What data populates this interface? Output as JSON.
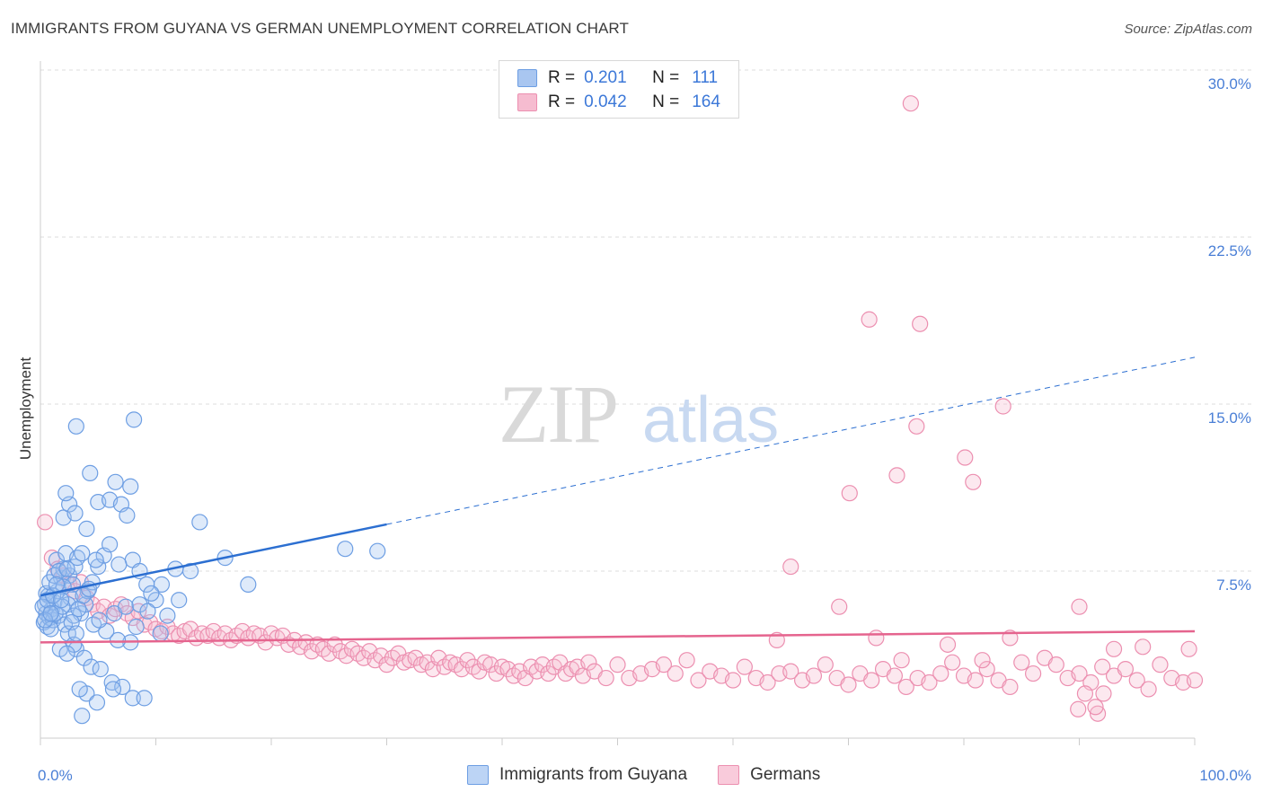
{
  "header": {
    "title": "IMMIGRANTS FROM GUYANA VS GERMAN UNEMPLOYMENT CORRELATION CHART",
    "source": "Source: ZipAtlas.com"
  },
  "legend": {
    "rows": [
      {
        "r_label": "R =",
        "r_value": "0.201",
        "n_label": "N =",
        "n_value": "111",
        "color": "#a9c6f0",
        "border": "#6d9ee3"
      },
      {
        "r_label": "R =",
        "r_value": "0.042",
        "n_label": "N =",
        "n_value": "164",
        "color": "#f6bcd0",
        "border": "#ec8fb0"
      }
    ]
  },
  "bottom_legend": [
    {
      "label": "Immigrants from Guyana",
      "color": "#bcd4f5",
      "border": "#6d9ee3"
    },
    {
      "label": "Germans",
      "color": "#f9cbdb",
      "border": "#ec8fb0"
    }
  ],
  "watermark": {
    "zip": "ZIP",
    "atlas": "atlas"
  },
  "chart_data": {
    "type": "scatter",
    "title": "IMMIGRANTS FROM GUYANA VS GERMAN UNEMPLOYMENT CORRELATION CHART",
    "xlabel": "",
    "ylabel": "Unemployment",
    "xlim": [
      0,
      100
    ],
    "ylim": [
      0,
      30
    ],
    "x_ticks": [
      {
        "value": 0,
        "label": "0.0%"
      },
      {
        "value": 100,
        "label": "100.0%"
      }
    ],
    "y_ticks": [
      {
        "value": 7.5,
        "label": "7.5%"
      },
      {
        "value": 15,
        "label": "15.0%"
      },
      {
        "value": 22.5,
        "label": "22.5%"
      },
      {
        "value": 30,
        "label": "30.0%"
      }
    ],
    "series": [
      {
        "name": "Immigrants from Guyana",
        "color": "#6d9ee3",
        "fill": "rgba(160,194,240,0.35)",
        "trend": {
          "x0": 0,
          "y0": 6.4,
          "x1": 30,
          "y1": 9.6,
          "dash_x1": 100,
          "dash_y1": 17.1,
          "color": "#2c6fd1"
        },
        "points": [
          [
            0.3,
            5.2
          ],
          [
            0.5,
            5.6
          ],
          [
            0.4,
            6.0
          ],
          [
            0.6,
            5.0
          ],
          [
            0.8,
            5.4
          ],
          [
            1.0,
            5.8
          ],
          [
            1.2,
            6.1
          ],
          [
            0.7,
            6.4
          ],
          [
            1.1,
            5.3
          ],
          [
            0.9,
            4.9
          ],
          [
            1.5,
            6.6
          ],
          [
            1.8,
            7.2
          ],
          [
            2.0,
            7.6
          ],
          [
            1.4,
            8.0
          ],
          [
            2.2,
            8.3
          ],
          [
            2.5,
            7.3
          ],
          [
            3.0,
            7.7
          ],
          [
            3.2,
            8.1
          ],
          [
            2.8,
            6.9
          ],
          [
            2.6,
            6.3
          ],
          [
            1.6,
            5.5
          ],
          [
            2.1,
            5.1
          ],
          [
            2.4,
            4.7
          ],
          [
            3.5,
            5.6
          ],
          [
            3.9,
            6.0
          ],
          [
            4.1,
            6.6
          ],
          [
            4.5,
            7.0
          ],
          [
            5.0,
            7.7
          ],
          [
            5.5,
            8.2
          ],
          [
            6.0,
            8.7
          ],
          [
            2.0,
            9.9
          ],
          [
            2.5,
            10.5
          ],
          [
            3.0,
            10.1
          ],
          [
            4.0,
            9.4
          ],
          [
            5.0,
            10.6
          ],
          [
            6.0,
            10.7
          ],
          [
            6.5,
            11.5
          ],
          [
            4.3,
            11.9
          ],
          [
            2.2,
            11.0
          ],
          [
            7.0,
            10.5
          ],
          [
            7.5,
            10.0
          ],
          [
            8.0,
            8.0
          ],
          [
            8.6,
            7.5
          ],
          [
            9.2,
            6.9
          ],
          [
            10.0,
            6.2
          ],
          [
            11.0,
            5.5
          ],
          [
            12.0,
            6.2
          ],
          [
            13.0,
            7.5
          ],
          [
            10.5,
            6.9
          ],
          [
            9.6,
            6.5
          ],
          [
            3.1,
            4.0
          ],
          [
            3.8,
            3.6
          ],
          [
            4.4,
            3.2
          ],
          [
            2.9,
            4.2
          ],
          [
            1.7,
            4.0
          ],
          [
            2.3,
            3.8
          ],
          [
            5.2,
            3.1
          ],
          [
            6.2,
            2.5
          ],
          [
            7.1,
            2.3
          ],
          [
            8.0,
            1.8
          ],
          [
            4.0,
            2.0
          ],
          [
            3.4,
            2.2
          ],
          [
            4.9,
            1.6
          ],
          [
            3.6,
            1.0
          ],
          [
            6.3,
            2.2
          ],
          [
            9.0,
            1.8
          ],
          [
            7.8,
            4.3
          ],
          [
            6.7,
            4.4
          ],
          [
            5.7,
            4.8
          ],
          [
            8.3,
            5.0
          ],
          [
            0.5,
            6.5
          ],
          [
            0.8,
            7.0
          ],
          [
            1.2,
            7.3
          ],
          [
            1.6,
            7.5
          ],
          [
            2.0,
            6.8
          ],
          [
            2.4,
            6.0
          ],
          [
            2.9,
            5.5
          ],
          [
            3.3,
            5.8
          ],
          [
            3.7,
            6.4
          ],
          [
            4.2,
            6.7
          ],
          [
            1.3,
            5.6
          ],
          [
            1.9,
            5.9
          ],
          [
            2.7,
            5.2
          ],
          [
            3.1,
            4.7
          ],
          [
            4.6,
            5.1
          ],
          [
            5.1,
            5.3
          ],
          [
            6.4,
            5.6
          ],
          [
            7.4,
            5.9
          ],
          [
            8.6,
            6.0
          ],
          [
            9.3,
            5.7
          ],
          [
            3.1,
            14.0
          ],
          [
            8.1,
            14.3
          ],
          [
            7.8,
            11.3
          ],
          [
            13.8,
            9.7
          ],
          [
            16.0,
            8.1
          ],
          [
            18.0,
            6.9
          ],
          [
            26.4,
            8.5
          ],
          [
            29.2,
            8.4
          ],
          [
            11.7,
            7.6
          ],
          [
            10.4,
            4.7
          ],
          [
            0.2,
            5.9
          ],
          [
            0.4,
            5.3
          ],
          [
            0.6,
            6.2
          ],
          [
            0.9,
            5.6
          ],
          [
            1.1,
            6.4
          ],
          [
            1.4,
            6.9
          ],
          [
            1.8,
            6.2
          ],
          [
            2.3,
            7.6
          ],
          [
            3.6,
            8.3
          ],
          [
            4.8,
            8.0
          ],
          [
            6.8,
            7.8
          ]
        ]
      },
      {
        "name": "Germans",
        "color": "#ec8fb0",
        "fill": "rgba(246,188,208,0.35)",
        "trend": {
          "x0": 0,
          "y0": 4.3,
          "x1": 100,
          "y1": 4.8,
          "color": "#e5648e"
        },
        "points": [
          [
            0.4,
            9.7
          ],
          [
            1.0,
            8.1
          ],
          [
            1.5,
            7.6
          ],
          [
            2.0,
            7.3
          ],
          [
            2.5,
            6.9
          ],
          [
            3.0,
            6.6
          ],
          [
            3.5,
            7.0
          ],
          [
            4.0,
            6.3
          ],
          [
            4.5,
            6.0
          ],
          [
            5.0,
            5.7
          ],
          [
            5.5,
            5.9
          ],
          [
            6.0,
            5.5
          ],
          [
            6.5,
            5.8
          ],
          [
            7.0,
            6.0
          ],
          [
            7.5,
            5.6
          ],
          [
            8.0,
            5.4
          ],
          [
            8.5,
            5.7
          ],
          [
            9.0,
            5.1
          ],
          [
            9.5,
            5.2
          ],
          [
            10.0,
            4.9
          ],
          [
            10.5,
            4.8
          ],
          [
            11.0,
            5.0
          ],
          [
            11.5,
            4.7
          ],
          [
            12.0,
            4.6
          ],
          [
            12.5,
            4.8
          ],
          [
            13.0,
            4.9
          ],
          [
            13.5,
            4.5
          ],
          [
            14.0,
            4.7
          ],
          [
            14.5,
            4.6
          ],
          [
            15.0,
            4.8
          ],
          [
            15.5,
            4.5
          ],
          [
            16.0,
            4.7
          ],
          [
            16.5,
            4.4
          ],
          [
            17.0,
            4.6
          ],
          [
            17.5,
            4.8
          ],
          [
            18.0,
            4.5
          ],
          [
            18.5,
            4.7
          ],
          [
            19.0,
            4.6
          ],
          [
            19.5,
            4.3
          ],
          [
            20.0,
            4.7
          ],
          [
            20.5,
            4.5
          ],
          [
            21.0,
            4.6
          ],
          [
            21.5,
            4.2
          ],
          [
            22.0,
            4.4
          ],
          [
            22.5,
            4.1
          ],
          [
            23.0,
            4.3
          ],
          [
            23.5,
            3.9
          ],
          [
            24.0,
            4.2
          ],
          [
            24.5,
            4.0
          ],
          [
            25.0,
            3.8
          ],
          [
            25.5,
            4.2
          ],
          [
            26.0,
            3.9
          ],
          [
            26.5,
            3.7
          ],
          [
            27.0,
            4.0
          ],
          [
            27.5,
            3.8
          ],
          [
            28.0,
            3.6
          ],
          [
            28.5,
            3.9
          ],
          [
            29.0,
            3.5
          ],
          [
            29.5,
            3.7
          ],
          [
            30.0,
            3.3
          ],
          [
            30.5,
            3.6
          ],
          [
            31.0,
            3.8
          ],
          [
            31.5,
            3.4
          ],
          [
            32.0,
            3.5
          ],
          [
            32.5,
            3.6
          ],
          [
            33.0,
            3.3
          ],
          [
            33.5,
            3.4
          ],
          [
            34.0,
            3.1
          ],
          [
            34.5,
            3.6
          ],
          [
            35.0,
            3.2
          ],
          [
            35.5,
            3.4
          ],
          [
            36.0,
            3.3
          ],
          [
            36.5,
            3.1
          ],
          [
            37.0,
            3.5
          ],
          [
            37.5,
            3.2
          ],
          [
            38.0,
            3.0
          ],
          [
            38.5,
            3.4
          ],
          [
            39.0,
            3.3
          ],
          [
            39.5,
            2.9
          ],
          [
            40.0,
            3.2
          ],
          [
            40.5,
            3.1
          ],
          [
            41.0,
            2.8
          ],
          [
            41.5,
            3.0
          ],
          [
            42.0,
            2.7
          ],
          [
            42.5,
            3.2
          ],
          [
            43.0,
            3.0
          ],
          [
            43.5,
            3.3
          ],
          [
            44.0,
            2.9
          ],
          [
            44.5,
            3.2
          ],
          [
            45.0,
            3.4
          ],
          [
            45.5,
            2.9
          ],
          [
            46.0,
            3.1
          ],
          [
            46.5,
            3.2
          ],
          [
            47.0,
            2.8
          ],
          [
            47.5,
            3.4
          ],
          [
            48.0,
            3.0
          ],
          [
            49.0,
            2.7
          ],
          [
            50.0,
            3.3
          ],
          [
            51.0,
            2.7
          ],
          [
            52.0,
            2.9
          ],
          [
            53.0,
            3.1
          ],
          [
            54.0,
            3.3
          ],
          [
            55.0,
            2.9
          ],
          [
            56.0,
            3.5
          ],
          [
            57.0,
            2.6
          ],
          [
            58.0,
            3.0
          ],
          [
            59.0,
            2.8
          ],
          [
            60.0,
            2.6
          ],
          [
            61.0,
            3.2
          ],
          [
            62.0,
            2.7
          ],
          [
            63.0,
            2.5
          ],
          [
            64.0,
            2.9
          ],
          [
            65.0,
            3.0
          ],
          [
            66.0,
            2.6
          ],
          [
            67.0,
            2.8
          ],
          [
            68.0,
            3.3
          ],
          [
            69.0,
            2.7
          ],
          [
            70.0,
            2.4
          ],
          [
            71.0,
            2.9
          ],
          [
            72.0,
            2.6
          ],
          [
            73.0,
            3.1
          ],
          [
            74.0,
            2.8
          ],
          [
            75.0,
            2.3
          ],
          [
            76.0,
            2.7
          ],
          [
            77.0,
            2.5
          ],
          [
            78.0,
            2.9
          ],
          [
            79.0,
            3.4
          ],
          [
            80.0,
            2.8
          ],
          [
            81.0,
            2.6
          ],
          [
            82.0,
            3.1
          ],
          [
            83.0,
            2.6
          ],
          [
            84.0,
            2.3
          ],
          [
            85.0,
            3.4
          ],
          [
            86.0,
            2.9
          ],
          [
            87.0,
            3.6
          ],
          [
            88.0,
            3.3
          ],
          [
            89.0,
            2.7
          ],
          [
            90.0,
            2.9
          ],
          [
            91.0,
            2.5
          ],
          [
            92.0,
            3.2
          ],
          [
            93.0,
            2.8
          ],
          [
            94.0,
            3.1
          ],
          [
            95.0,
            2.6
          ],
          [
            96.0,
            2.2
          ],
          [
            97.0,
            3.3
          ],
          [
            98.0,
            2.7
          ],
          [
            99.0,
            2.5
          ],
          [
            100.0,
            2.6
          ],
          [
            99.5,
            4.0
          ],
          [
            63.8,
            4.4
          ],
          [
            72.4,
            4.5
          ],
          [
            74.6,
            3.5
          ],
          [
            78.6,
            4.2
          ],
          [
            81.6,
            3.5
          ],
          [
            84.0,
            4.5
          ],
          [
            90.0,
            5.9
          ],
          [
            93.0,
            4.0
          ],
          [
            95.5,
            4.1
          ],
          [
            69.2,
            5.9
          ],
          [
            65.0,
            7.7
          ],
          [
            70.1,
            11.0
          ],
          [
            74.2,
            11.8
          ],
          [
            75.9,
            14.0
          ],
          [
            80.1,
            12.6
          ],
          [
            80.8,
            11.5
          ],
          [
            83.4,
            14.9
          ],
          [
            71.8,
            18.8
          ],
          [
            76.2,
            18.6
          ],
          [
            75.4,
            28.5
          ],
          [
            90.5,
            2.0
          ],
          [
            92.1,
            2.0
          ],
          [
            91.6,
            1.1
          ],
          [
            91.4,
            1.4
          ],
          [
            89.9,
            1.3
          ]
        ]
      }
    ]
  }
}
